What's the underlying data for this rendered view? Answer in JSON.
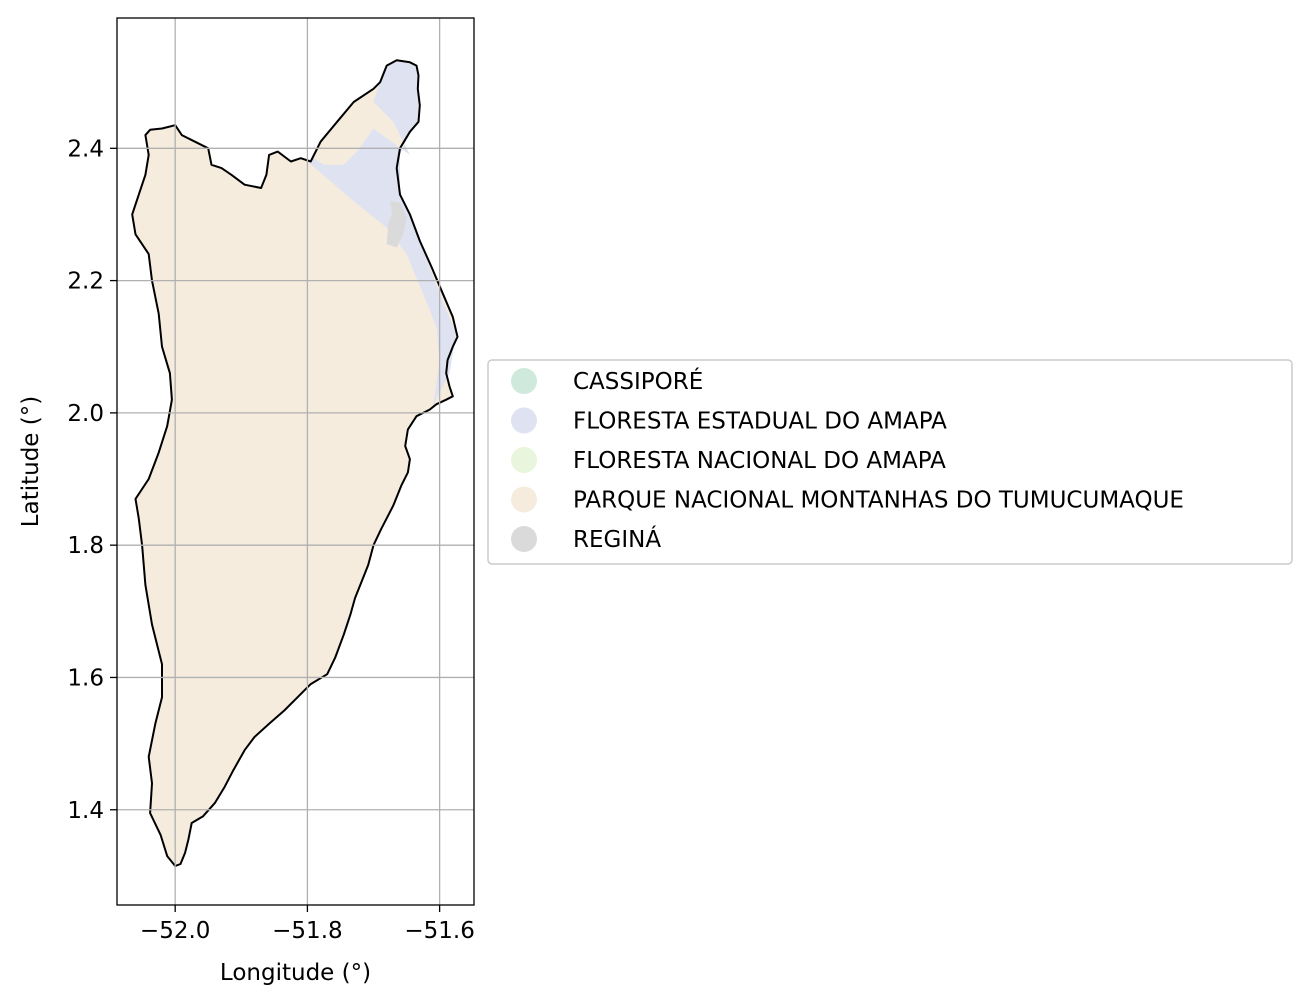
{
  "chart_data": {
    "type": "map",
    "xlabel": "Longitude (°)",
    "ylabel": "Latitude (°)",
    "xlim": [
      -52.088,
      -51.548
    ],
    "ylim": [
      1.256,
      2.597
    ],
    "grid": true,
    "legend_placement": "center-right",
    "x_ticks": [
      {
        "value": -52.0,
        "label": "−52.0"
      },
      {
        "value": -51.8,
        "label": "−51.8"
      },
      {
        "value": -51.6,
        "label": "−51.6"
      }
    ],
    "y_ticks": [
      {
        "value": 1.4,
        "label": "1.4"
      },
      {
        "value": 1.6,
        "label": "1.6"
      },
      {
        "value": 1.8,
        "label": "1.8"
      },
      {
        "value": 2.0,
        "label": "2.0"
      },
      {
        "value": 2.2,
        "label": "2.2"
      },
      {
        "value": 2.4,
        "label": "2.4"
      }
    ],
    "categories": [
      {
        "label": "CASSIPORÉ",
        "color": "#cfe9dd"
      },
      {
        "label": "FLORESTA ESTADUAL DO AMAPA",
        "color": "#dfe3f1"
      },
      {
        "label": "FLORESTA NACIONAL DO AMAPA",
        "color": "#e9f5dc"
      },
      {
        "label": "PARQUE NACIONAL MONTANHAS DO TUMUCUMAQUE",
        "color": "#f5ecde"
      },
      {
        "label": "REGINÁ",
        "color": "#dadada"
      }
    ],
    "region_outline": [
      [
        -51.645,
        2.53
      ],
      [
        -51.635,
        2.525
      ],
      [
        -51.632,
        2.51
      ],
      [
        -51.633,
        2.49
      ],
      [
        -51.63,
        2.465
      ],
      [
        -51.632,
        2.44
      ],
      [
        -51.645,
        2.425
      ],
      [
        -51.66,
        2.4
      ],
      [
        -51.665,
        2.37
      ],
      [
        -51.66,
        2.33
      ],
      [
        -51.645,
        2.3
      ],
      [
        -51.63,
        2.26
      ],
      [
        -51.612,
        2.22
      ],
      [
        -51.595,
        2.18
      ],
      [
        -51.58,
        2.145
      ],
      [
        -51.573,
        2.115
      ],
      [
        -51.58,
        2.1
      ],
      [
        -51.588,
        2.08
      ],
      [
        -51.59,
        2.06
      ],
      [
        -51.585,
        2.04
      ],
      [
        -51.58,
        2.025
      ],
      [
        -51.59,
        2.02
      ],
      [
        -51.605,
        2.013
      ],
      [
        -51.615,
        2.005
      ],
      [
        -51.635,
        1.995
      ],
      [
        -51.648,
        1.975
      ],
      [
        -51.652,
        1.95
      ],
      [
        -51.645,
        1.93
      ],
      [
        -51.648,
        1.91
      ],
      [
        -51.658,
        1.89
      ],
      [
        -51.67,
        1.86
      ],
      [
        -51.688,
        1.825
      ],
      [
        -51.7,
        1.8
      ],
      [
        -51.708,
        1.77
      ],
      [
        -51.718,
        1.745
      ],
      [
        -51.728,
        1.72
      ],
      [
        -51.735,
        1.695
      ],
      [
        -51.745,
        1.665
      ],
      [
        -51.758,
        1.63
      ],
      [
        -51.77,
        1.605
      ],
      [
        -51.795,
        1.59
      ],
      [
        -51.815,
        1.57
      ],
      [
        -51.835,
        1.55
      ],
      [
        -51.858,
        1.53
      ],
      [
        -51.88,
        1.51
      ],
      [
        -51.895,
        1.49
      ],
      [
        -51.912,
        1.46
      ],
      [
        -51.925,
        1.435
      ],
      [
        -51.94,
        1.41
      ],
      [
        -51.958,
        1.39
      ],
      [
        -51.975,
        1.38
      ],
      [
        -51.98,
        1.355
      ],
      [
        -51.985,
        1.335
      ],
      [
        -51.992,
        1.318
      ],
      [
        -52.0,
        1.315
      ],
      [
        -52.012,
        1.33
      ],
      [
        -52.022,
        1.362
      ],
      [
        -52.038,
        1.395
      ],
      [
        -52.035,
        1.44
      ],
      [
        -52.04,
        1.48
      ],
      [
        -52.03,
        1.53
      ],
      [
        -52.02,
        1.57
      ],
      [
        -52.02,
        1.62
      ],
      [
        -52.035,
        1.68
      ],
      [
        -52.045,
        1.74
      ],
      [
        -52.05,
        1.8
      ],
      [
        -52.055,
        1.84
      ],
      [
        -52.06,
        1.87
      ],
      [
        -52.04,
        1.9
      ],
      [
        -52.025,
        1.94
      ],
      [
        -52.012,
        1.98
      ],
      [
        -52.005,
        2.02
      ],
      [
        -52.008,
        2.06
      ],
      [
        -52.02,
        2.1
      ],
      [
        -52.025,
        2.15
      ],
      [
        -52.035,
        2.2
      ],
      [
        -52.04,
        2.24
      ],
      [
        -52.06,
        2.27
      ],
      [
        -52.065,
        2.3
      ],
      [
        -52.055,
        2.33
      ],
      [
        -52.045,
        2.36
      ],
      [
        -52.04,
        2.39
      ],
      [
        -52.045,
        2.42
      ],
      [
        -52.038,
        2.428
      ],
      [
        -52.02,
        2.43
      ],
      [
        -52.0,
        2.435
      ],
      [
        -51.99,
        2.42
      ],
      [
        -51.97,
        2.41
      ],
      [
        -51.95,
        2.4
      ],
      [
        -51.945,
        2.375
      ],
      [
        -51.93,
        2.37
      ],
      [
        -51.915,
        2.36
      ],
      [
        -51.895,
        2.345
      ],
      [
        -51.87,
        2.34
      ],
      [
        -51.862,
        2.36
      ],
      [
        -51.858,
        2.39
      ],
      [
        -51.845,
        2.395
      ],
      [
        -51.825,
        2.38
      ],
      [
        -51.81,
        2.385
      ],
      [
        -51.795,
        2.38
      ],
      [
        -51.78,
        2.41
      ],
      [
        -51.755,
        2.44
      ],
      [
        -51.73,
        2.47
      ],
      [
        -51.7,
        2.49
      ],
      [
        -51.69,
        2.5
      ],
      [
        -51.68,
        2.525
      ],
      [
        -51.665,
        2.533
      ],
      [
        -51.645,
        2.53
      ]
    ],
    "floresta_estadual_polygons": [
      [
        [
          -51.66,
          2.533
        ],
        [
          -51.635,
          2.525
        ],
        [
          -51.632,
          2.49
        ],
        [
          -51.633,
          2.44
        ],
        [
          -51.645,
          2.425
        ],
        [
          -51.66,
          2.39
        ],
        [
          -51.66,
          2.33
        ],
        [
          -51.645,
          2.3
        ],
        [
          -51.63,
          2.26
        ],
        [
          -51.6,
          2.18
        ],
        [
          -51.575,
          2.12
        ],
        [
          -51.585,
          2.06
        ],
        [
          -51.61,
          2.01
        ],
        [
          -51.6,
          2.08
        ],
        [
          -51.605,
          2.13
        ],
        [
          -51.625,
          2.18
        ],
        [
          -51.65,
          2.24
        ],
        [
          -51.68,
          2.28
        ],
        [
          -51.73,
          2.32
        ],
        [
          -51.8,
          2.38
        ],
        [
          -51.79,
          2.385
        ],
        [
          -51.775,
          2.375
        ],
        [
          -51.745,
          2.375
        ],
        [
          -51.725,
          2.395
        ],
        [
          -51.7,
          2.43
        ],
        [
          -51.645,
          2.39
        ],
        [
          -51.67,
          2.44
        ],
        [
          -51.7,
          2.47
        ],
        [
          -51.69,
          2.5
        ],
        [
          -51.68,
          2.525
        ]
      ]
    ],
    "regina_polygons": [
      [
        [
          -51.675,
          2.32
        ],
        [
          -51.66,
          2.318
        ],
        [
          -51.65,
          2.295
        ],
        [
          -51.655,
          2.27
        ],
        [
          -51.665,
          2.25
        ],
        [
          -51.68,
          2.255
        ],
        [
          -51.678,
          2.285
        ],
        [
          -51.672,
          2.3
        ]
      ]
    ]
  }
}
